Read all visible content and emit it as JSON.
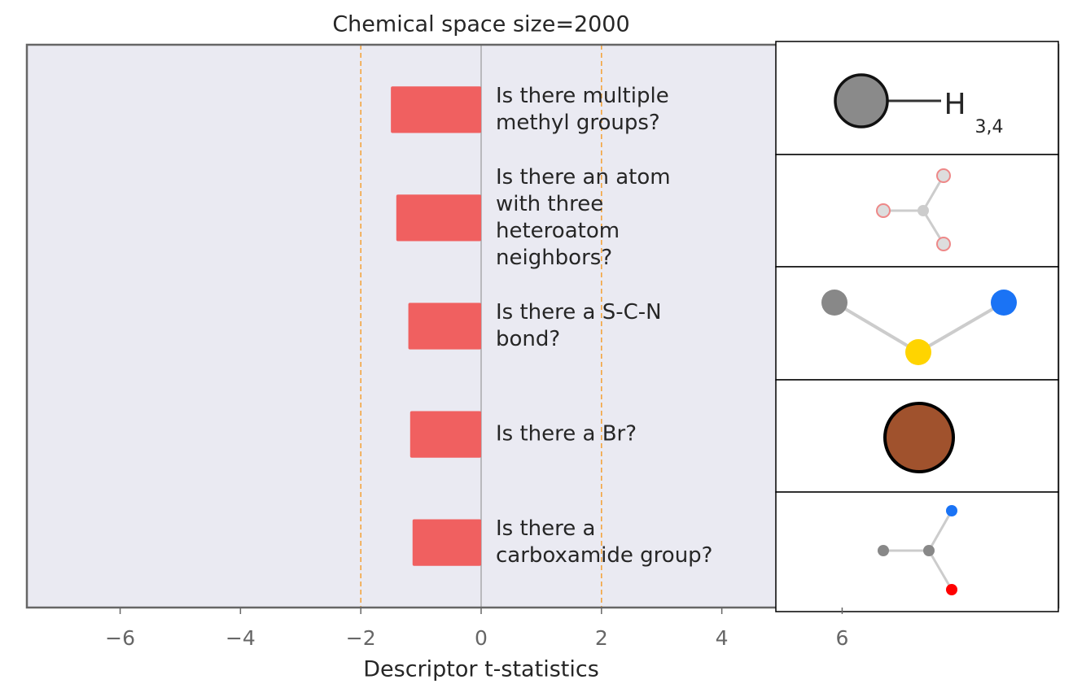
{
  "chart_data": {
    "type": "barh",
    "title": "Chemical space size=2000",
    "xlabel": "Descriptor t-statistics",
    "categories": [
      "Is there multiple\nmethyl groups?",
      "Is there an atom\nwith three\nheteroatom\nneighbors?",
      "Is there a S-C-N\nbond?",
      "Is there a Br?",
      "Is there a\ncarboxamide group?"
    ],
    "values": [
      -1.5,
      -1.41,
      -1.21,
      -1.18,
      -1.14
    ],
    "color": "#f06060",
    "xlim": [
      -7.55,
      7.55
    ],
    "xticks": [
      {
        "value": -6,
        "label": "−6"
      },
      {
        "value": -4,
        "label": "−4"
      },
      {
        "value": -2,
        "label": "−2"
      },
      0,
      2,
      4,
      6
    ],
    "thresholds": [
      -2,
      2
    ],
    "annotations": [
      "H",
      "3,4"
    ]
  }
}
